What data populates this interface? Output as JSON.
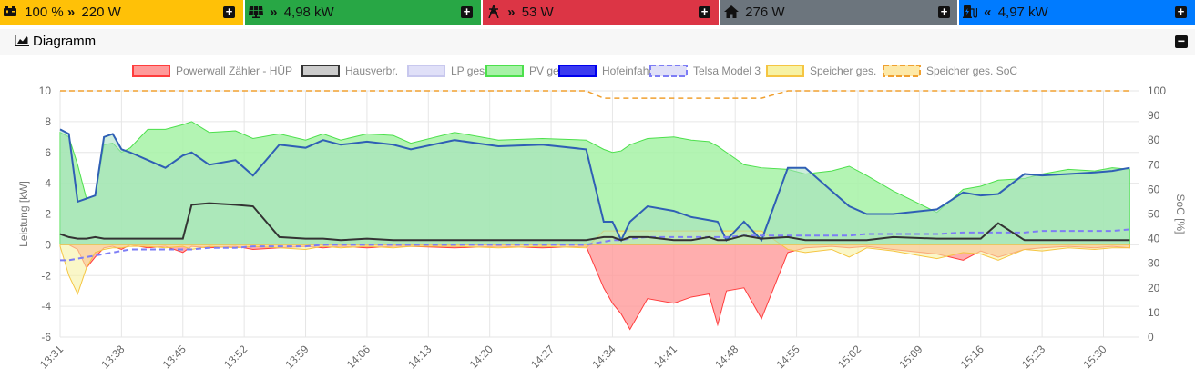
{
  "topbar": {
    "battery": {
      "soc": "100 %",
      "power": "220 W",
      "color": "#ffc107",
      "icon": "battery-icon"
    },
    "pv": {
      "power": "4,98 kW",
      "color": "#28a745",
      "icon": "solar-panel-icon"
    },
    "grid": {
      "power": "53 W",
      "color": "#dc3545",
      "icon": "power-tower-icon"
    },
    "house": {
      "power": "276 W",
      "color": "#6c757d",
      "icon": "home-icon"
    },
    "charge": {
      "power": "4,97 kW",
      "color": "#007bff",
      "icon": "ev-charger-icon"
    }
  },
  "card": {
    "title": "Diagramm",
    "icon": "area-chart-icon"
  },
  "chart_data": {
    "type": "area",
    "ylabel": "Leistung [kW]",
    "y2label": "SoC [%]",
    "ylim": [
      -6,
      10
    ],
    "y2lim": [
      0,
      100
    ],
    "grid": true,
    "legend_position": "top",
    "x_ticks": [
      "13:31",
      "13:38",
      "13:45",
      "13:52",
      "13:59",
      "14:06",
      "14:13",
      "14:20",
      "14:27",
      "14:34",
      "14:41",
      "14:48",
      "14:55",
      "15:02",
      "15:09",
      "15:16",
      "15:23",
      "15:30"
    ],
    "y_ticks": [
      -6,
      -4,
      -2,
      0,
      2,
      4,
      6,
      8,
      10
    ],
    "y2_ticks": [
      0,
      10,
      20,
      30,
      40,
      50,
      60,
      70,
      80,
      90,
      100
    ],
    "x_minutes": [
      0,
      1,
      2,
      3,
      4,
      5,
      6,
      7,
      8,
      10,
      12,
      14,
      15,
      17,
      20,
      22,
      25,
      28,
      30,
      32,
      35,
      38,
      40,
      45,
      50,
      55,
      60,
      62,
      63,
      64,
      65,
      67,
      70,
      72,
      74,
      75,
      76,
      78,
      80,
      83,
      85,
      88,
      90,
      92,
      95,
      100,
      103,
      105,
      107,
      110,
      112,
      115,
      118,
      120,
      122
    ],
    "series": [
      {
        "name": "Powerwall Zähler - HÜP",
        "kind": "area",
        "color": "#ff9a9a",
        "line": "#ff3d3d",
        "values": [
          0,
          0,
          -0.3,
          -1.5,
          -0.8,
          -0.2,
          -0.1,
          -0.3,
          0,
          -0.2,
          -0.1,
          -0.5,
          -0.1,
          -0.2,
          -0.1,
          -0.3,
          -0.2,
          -0.1,
          -0.2,
          -0.1,
          -0.2,
          -0.1,
          -0.1,
          -0.2,
          -0.1,
          -0.2,
          -0.1,
          -2.8,
          -3.8,
          -4.5,
          -5.5,
          -3.5,
          -3.8,
          -3.4,
          -3.2,
          -5.2,
          -3.0,
          -2.8,
          -4.8,
          -0.5,
          -0.2,
          -0.1,
          -0.2,
          -0.1,
          -0.3,
          -0.6,
          -1.0,
          -0.4,
          -0.8,
          -0.3,
          -0.2,
          -0.1,
          -0.2,
          -0.1,
          -0.2
        ]
      },
      {
        "name": "Hausverbr.",
        "kind": "line",
        "color": "#cccccc",
        "line": "#333333",
        "values": [
          0.7,
          0.5,
          0.4,
          0.4,
          0.5,
          0.4,
          0.4,
          0.4,
          0.4,
          0.4,
          0.4,
          0.4,
          2.6,
          2.7,
          2.6,
          2.5,
          0.5,
          0.4,
          0.4,
          0.3,
          0.4,
          0.3,
          0.3,
          0.3,
          0.3,
          0.3,
          0.3,
          0.5,
          0.5,
          0.3,
          0.5,
          0.5,
          0.3,
          0.3,
          0.5,
          0.3,
          0.3,
          0.6,
          0.4,
          0.5,
          0.3,
          0.3,
          0.3,
          0.3,
          0.5,
          0.4,
          0.4,
          0.4,
          1.4,
          0.3,
          0.3,
          0.3,
          0.3,
          0.3,
          0.3
        ]
      },
      {
        "name": "LP ges.",
        "kind": "area",
        "color": "#e0e0f8",
        "line": "#c8c8ee",
        "values": []
      },
      {
        "name": "PV ges.",
        "kind": "area",
        "color": "#a6f2a6",
        "line": "#4ce04c",
        "values": [
          7.3,
          7.0,
          5.2,
          3.0,
          3.2,
          6.5,
          6.6,
          6.0,
          6.3,
          7.5,
          7.5,
          7.8,
          8.0,
          7.3,
          7.4,
          6.9,
          7.2,
          6.8,
          7.2,
          6.8,
          7.2,
          7.1,
          6.6,
          7.3,
          6.8,
          6.9,
          6.8,
          6.2,
          6.0,
          6.1,
          6.5,
          6.9,
          7.0,
          6.8,
          6.7,
          6.4,
          6.0,
          5.2,
          5.0,
          4.9,
          4.6,
          4.8,
          5.1,
          4.5,
          3.5,
          2.1,
          3.6,
          3.8,
          4.2,
          4.3,
          4.6,
          4.9,
          4.8,
          5.0,
          4.9
        ]
      },
      {
        "name": "Hofeinfahrt",
        "kind": "line",
        "color": "#3b3bf0",
        "line": "#0000ee",
        "values": []
      },
      {
        "name": "Telsa Model 3",
        "kind": "dashed",
        "color": "#d8d8f8",
        "line": "#7d7df5",
        "values": [
          -1.0,
          -1.0,
          -0.9,
          -0.8,
          -0.7,
          -0.6,
          -0.5,
          -0.4,
          -0.3,
          -0.3,
          -0.3,
          -0.3,
          -0.3,
          -0.2,
          -0.2,
          -0.1,
          -0.1,
          -0.1,
          0,
          0,
          0,
          0,
          0,
          0,
          0,
          0,
          0,
          0.2,
          0.3,
          0.3,
          0.4,
          0.5,
          0.5,
          0.5,
          0.5,
          0.5,
          0.5,
          0.6,
          0.6,
          0.6,
          0.6,
          0.6,
          0.6,
          0.7,
          0.7,
          0.7,
          0.8,
          0.8,
          0.8,
          0.8,
          0.9,
          0.9,
          0.9,
          0.9,
          1.0
        ]
      },
      {
        "name": "Speicher ges.",
        "kind": "area",
        "color": "#f7f2a3",
        "line": "#f5c542",
        "values": [
          -0.1,
          -2.0,
          -3.2,
          -1.5,
          -0.5,
          -0.3,
          -0.2,
          -0.2,
          -0.1,
          -0.1,
          -0.2,
          -0.1,
          -0.3,
          -0.1,
          -0.2,
          -0.1,
          -0.2,
          -0.3,
          -0.1,
          -0.2,
          -0.1,
          -0.2,
          -0.1,
          -0.1,
          -0.2,
          -0.1,
          -0.2,
          0.9,
          0.9,
          0.9,
          0.9,
          0.9,
          0.9,
          0.9,
          0.9,
          0.9,
          0.9,
          0.9,
          0.9,
          -0.3,
          -0.5,
          -0.3,
          -0.8,
          -0.2,
          -0.4,
          -0.9,
          -0.5,
          -0.6,
          -1.0,
          -0.3,
          -0.4,
          -0.2,
          -0.3,
          -0.2,
          -0.2
        ]
      },
      {
        "name": "Speicher ges. SoC",
        "kind": "dashed-right",
        "color": "#fde9a8",
        "line": "#f0a030",
        "values": [
          100,
          100,
          100,
          100,
          100,
          100,
          100,
          100,
          100,
          100,
          100,
          100,
          100,
          100,
          100,
          100,
          100,
          100,
          100,
          100,
          100,
          100,
          100,
          100,
          100,
          100,
          100,
          97,
          97,
          97,
          97,
          97,
          97,
          97,
          97,
          97,
          97,
          97,
          97,
          100,
          100,
          100,
          100,
          100,
          100,
          100,
          100,
          100,
          100,
          100,
          100,
          100,
          100,
          100,
          100
        ]
      }
    ],
    "hofeinfahrt_values": [
      7.5,
      7.2,
      2.8,
      3.0,
      3.2,
      7.0,
      7.2,
      6.2,
      6.0,
      5.5,
      5.0,
      5.8,
      6.0,
      5.2,
      5.5,
      4.5,
      6.5,
      6.3,
      6.8,
      6.5,
      6.7,
      6.5,
      6.2,
      6.8,
      6.4,
      6.5,
      6.2,
      1.5,
      1.5,
      0.3,
      1.5,
      2.5,
      2.2,
      1.8,
      1.6,
      1.5,
      0.3,
      1.5,
      0.3,
      5.0,
      5.0,
      3.5,
      2.5,
      2.0,
      2.0,
      2.3,
      3.4,
      3.2,
      3.3,
      4.6,
      4.5,
      4.6,
      4.7,
      4.8,
      5.0
    ]
  }
}
